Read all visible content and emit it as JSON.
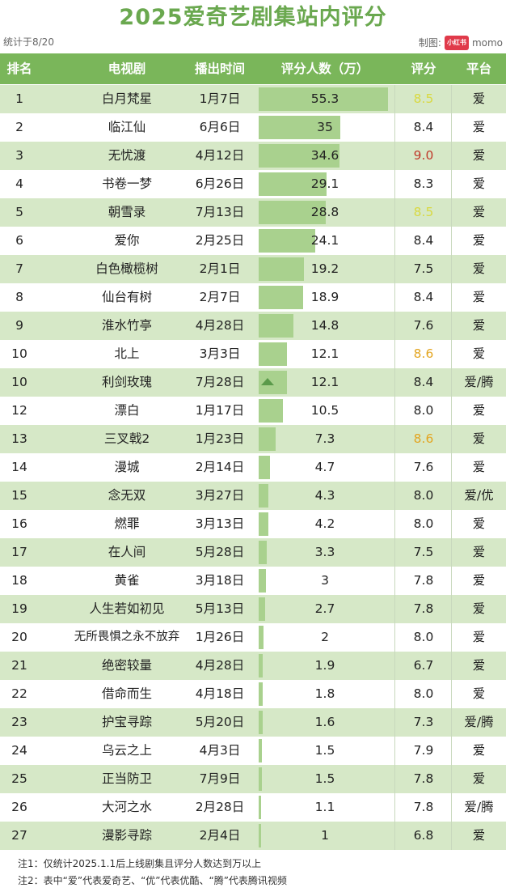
{
  "title": "2025爱奇艺剧集站内评分",
  "stat_date": "统计于8/20",
  "credit_label": "制图:",
  "credit_badge": "小红书",
  "credit_name": "momo",
  "colors": {
    "header": "#7ab65a",
    "shade": "#d6e8c7",
    "bar": "#a9d18e",
    "score_red": "#c0392b",
    "score_gold": "#e3a520",
    "score_yellow": "#d9d941"
  },
  "notes": {
    "note1": "注1：仅统计2025.1.1后上线剧集且评分人数达到万以上",
    "note2": "注2：表中“爱”代表爱奇艺、“优”代表优酷、“腾”代表腾讯视频"
  },
  "chart_data": {
    "type": "table",
    "title": "2025爱奇艺剧集站内评分",
    "columns": [
      "排名",
      "电视剧",
      "播出时间",
      "评分人数（万）",
      "评分",
      "平台"
    ],
    "rows": [
      {
        "rank": "1",
        "name": "白月梵星",
        "date": "1月7日",
        "raters": 55.3,
        "raters_label": "55.3",
        "score": "8.5",
        "score_color": "yellow",
        "platform": "爱"
      },
      {
        "rank": "2",
        "name": "临江仙",
        "date": "6月6日",
        "raters": 35,
        "raters_label": "35",
        "score": "8.4",
        "score_color": "",
        "platform": "爱"
      },
      {
        "rank": "3",
        "name": "无忧渡",
        "date": "4月12日",
        "raters": 34.6,
        "raters_label": "34.6",
        "score": "9.0",
        "score_color": "red",
        "platform": "爱"
      },
      {
        "rank": "4",
        "name": "书卷一梦",
        "date": "6月26日",
        "raters": 29.1,
        "raters_label": "29.1",
        "score": "8.3",
        "score_color": "",
        "platform": "爱"
      },
      {
        "rank": "5",
        "name": "朝雪录",
        "date": "7月13日",
        "raters": 28.8,
        "raters_label": "28.8",
        "score": "8.5",
        "score_color": "yellow",
        "platform": "爱"
      },
      {
        "rank": "6",
        "name": "爱你",
        "date": "2月25日",
        "raters": 24.1,
        "raters_label": "24.1",
        "score": "8.4",
        "score_color": "",
        "platform": "爱"
      },
      {
        "rank": "7",
        "name": "白色橄榄树",
        "date": "2月1日",
        "raters": 19.2,
        "raters_label": "19.2",
        "score": "7.5",
        "score_color": "",
        "platform": "爱"
      },
      {
        "rank": "8",
        "name": "仙台有树",
        "date": "2月7日",
        "raters": 18.9,
        "raters_label": "18.9",
        "score": "8.4",
        "score_color": "",
        "platform": "爱"
      },
      {
        "rank": "9",
        "name": "淮水竹亭",
        "date": "4月28日",
        "raters": 14.8,
        "raters_label": "14.8",
        "score": "7.6",
        "score_color": "",
        "platform": "爱"
      },
      {
        "rank": "10",
        "name": "北上",
        "date": "3月3日",
        "raters": 12.1,
        "raters_label": "12.1",
        "score": "8.6",
        "score_color": "gold",
        "platform": "爱"
      },
      {
        "rank": "10",
        "name": "利剑玫瑰",
        "date": "7月28日",
        "raters": 12.1,
        "raters_label": "12.1",
        "score": "8.4",
        "score_color": "",
        "platform": "爱/腾",
        "marker": true
      },
      {
        "rank": "12",
        "name": "漂白",
        "date": "1月17日",
        "raters": 10.5,
        "raters_label": "10.5",
        "score": "8.0",
        "score_color": "",
        "platform": "爱"
      },
      {
        "rank": "13",
        "name": "三叉戟2",
        "date": "1月23日",
        "raters": 7.3,
        "raters_label": "7.3",
        "score": "8.6",
        "score_color": "gold",
        "platform": "爱"
      },
      {
        "rank": "14",
        "name": "漫城",
        "date": "2月14日",
        "raters": 4.7,
        "raters_label": "4.7",
        "score": "7.6",
        "score_color": "",
        "platform": "爱"
      },
      {
        "rank": "15",
        "name": "念无双",
        "date": "3月27日",
        "raters": 4.3,
        "raters_label": "4.3",
        "score": "8.0",
        "score_color": "",
        "platform": "爱/优"
      },
      {
        "rank": "16",
        "name": "燃罪",
        "date": "3月13日",
        "raters": 4.2,
        "raters_label": "4.2",
        "score": "8.0",
        "score_color": "",
        "platform": "爱"
      },
      {
        "rank": "17",
        "name": "在人间",
        "date": "5月28日",
        "raters": 3.3,
        "raters_label": "3.3",
        "score": "7.5",
        "score_color": "",
        "platform": "爱"
      },
      {
        "rank": "18",
        "name": "黄雀",
        "date": "3月18日",
        "raters": 3,
        "raters_label": "3",
        "score": "7.8",
        "score_color": "",
        "platform": "爱"
      },
      {
        "rank": "19",
        "name": "人生若如初见",
        "date": "5月13日",
        "raters": 2.7,
        "raters_label": "2.7",
        "score": "7.8",
        "score_color": "",
        "platform": "爱"
      },
      {
        "rank": "20",
        "name": "无所畏惧之永不放弃",
        "date": "1月26日",
        "raters": 2,
        "raters_label": "2",
        "score": "8.0",
        "score_color": "",
        "platform": "爱"
      },
      {
        "rank": "21",
        "name": "绝密较量",
        "date": "4月28日",
        "raters": 1.9,
        "raters_label": "1.9",
        "score": "6.7",
        "score_color": "",
        "platform": "爱"
      },
      {
        "rank": "22",
        "name": "借命而生",
        "date": "4月18日",
        "raters": 1.8,
        "raters_label": "1.8",
        "score": "8.0",
        "score_color": "",
        "platform": "爱"
      },
      {
        "rank": "23",
        "name": "护宝寻踪",
        "date": "5月20日",
        "raters": 1.6,
        "raters_label": "1.6",
        "score": "7.3",
        "score_color": "",
        "platform": "爱/腾"
      },
      {
        "rank": "24",
        "name": "乌云之上",
        "date": "4月3日",
        "raters": 1.5,
        "raters_label": "1.5",
        "score": "7.9",
        "score_color": "",
        "platform": "爱"
      },
      {
        "rank": "25",
        "name": "正当防卫",
        "date": "7月9日",
        "raters": 1.5,
        "raters_label": "1.5",
        "score": "7.8",
        "score_color": "",
        "platform": "爱"
      },
      {
        "rank": "26",
        "name": "大河之水",
        "date": "2月28日",
        "raters": 1.1,
        "raters_label": "1.1",
        "score": "7.8",
        "score_color": "",
        "platform": "爱/腾"
      },
      {
        "rank": "27",
        "name": "漫影寻踪",
        "date": "2月4日",
        "raters": 1,
        "raters_label": "1",
        "score": "6.8",
        "score_color": "",
        "platform": "爱"
      }
    ]
  }
}
